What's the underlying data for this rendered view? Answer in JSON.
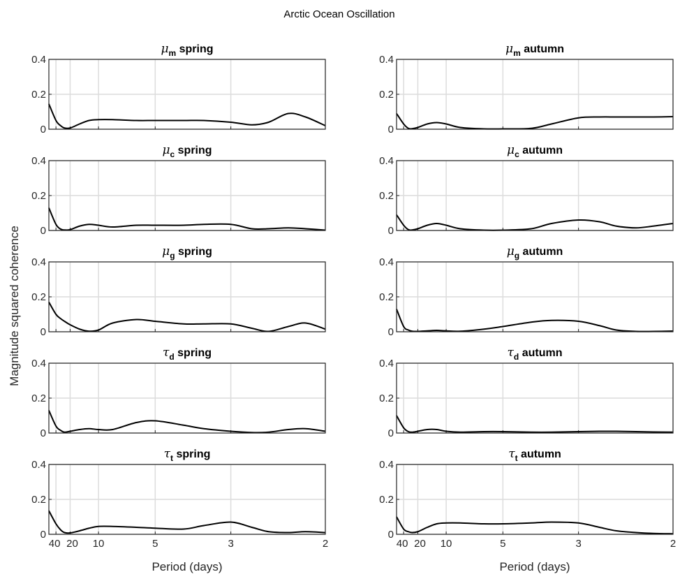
{
  "figure_title": "Arctic Ocean Oscillation",
  "ylabel": "Magnitude squared coherence",
  "xlabel": "Period (days)",
  "chart_data": [
    {
      "type": "line",
      "title_symbol": "μ",
      "title_sub": "m",
      "title_rest": " spring",
      "x_scale": "reciprocal (frequency)",
      "xticks": [
        40,
        20,
        10,
        5,
        3,
        2
      ],
      "xlim": [
        80,
        2
      ],
      "ylim": [
        0,
        0.4
      ],
      "yticks": [
        0,
        0.2,
        0.4
      ],
      "ytick_labels": [
        "0",
        "0.2",
        "0.4"
      ],
      "grid": true,
      "x": [
        80,
        40,
        30,
        25,
        20,
        15,
        12,
        10,
        8,
        6,
        5,
        4,
        3.5,
        3,
        2.7,
        2.5,
        2.3,
        2.15,
        2
      ],
      "y": [
        0.145,
        0.05,
        0.02,
        0.007,
        0.007,
        0.03,
        0.05,
        0.055,
        0.055,
        0.05,
        0.05,
        0.05,
        0.05,
        0.04,
        0.025,
        0.04,
        0.09,
        0.07,
        0.02
      ]
    },
    {
      "type": "line",
      "title_symbol": "μ",
      "title_sub": "m",
      "title_rest": " autumn",
      "x_scale": "reciprocal (frequency)",
      "xticks": [
        40,
        20,
        10,
        5,
        3,
        2
      ],
      "xlim": [
        80,
        2
      ],
      "ylim": [
        0,
        0.4
      ],
      "yticks": [
        0,
        0.2,
        0.4
      ],
      "ytick_labels": [
        "0",
        "0.2",
        "0.4"
      ],
      "grid": true,
      "x": [
        80,
        40,
        30,
        25,
        20,
        15,
        12,
        10,
        8,
        6,
        5,
        4,
        3.5,
        3,
        2.7,
        2.5,
        2.3,
        2.15,
        2
      ],
      "y": [
        0.09,
        0.03,
        0.005,
        0.003,
        0.01,
        0.03,
        0.038,
        0.03,
        0.01,
        0.002,
        0.002,
        0.005,
        0.03,
        0.065,
        0.07,
        0.07,
        0.07,
        0.07,
        0.072
      ]
    },
    {
      "type": "line",
      "title_symbol": "μ",
      "title_sub": "c",
      "title_rest": " spring",
      "x_scale": "reciprocal (frequency)",
      "xticks": [
        40,
        20,
        10,
        5,
        3,
        2
      ],
      "xlim": [
        80,
        2
      ],
      "ylim": [
        0,
        0.4
      ],
      "yticks": [
        0,
        0.2,
        0.4
      ],
      "ytick_labels": [
        "0",
        "0.2",
        "0.4"
      ],
      "grid": true,
      "x": [
        80,
        40,
        30,
        25,
        20,
        15,
        12,
        10,
        8,
        6,
        5,
        4,
        3.5,
        3,
        2.7,
        2.5,
        2.3,
        2.15,
        2
      ],
      "y": [
        0.13,
        0.035,
        0.008,
        0.003,
        0.005,
        0.025,
        0.035,
        0.03,
        0.02,
        0.03,
        0.03,
        0.03,
        0.035,
        0.035,
        0.01,
        0.01,
        0.015,
        0.01,
        0.002
      ]
    },
    {
      "type": "line",
      "title_symbol": "μ",
      "title_sub": "c",
      "title_rest": " autumn",
      "x_scale": "reciprocal (frequency)",
      "xticks": [
        40,
        20,
        10,
        5,
        3,
        2
      ],
      "xlim": [
        80,
        2
      ],
      "ylim": [
        0,
        0.4
      ],
      "yticks": [
        0,
        0.2,
        0.4
      ],
      "ytick_labels": [
        "0",
        "0.2",
        "0.4"
      ],
      "grid": true,
      "x": [
        80,
        40,
        30,
        25,
        20,
        15,
        12,
        10,
        8,
        6,
        5,
        4,
        3.5,
        3,
        2.7,
        2.5,
        2.3,
        2.15,
        2
      ],
      "y": [
        0.09,
        0.03,
        0.005,
        0.003,
        0.01,
        0.03,
        0.04,
        0.03,
        0.01,
        0.002,
        0.002,
        0.01,
        0.04,
        0.06,
        0.05,
        0.025,
        0.015,
        0.025,
        0.04
      ]
    },
    {
      "type": "line",
      "title_symbol": "μ",
      "title_sub": "g",
      "title_rest": " spring",
      "x_scale": "reciprocal (frequency)",
      "xticks": [
        40,
        20,
        10,
        5,
        3,
        2
      ],
      "xlim": [
        80,
        2
      ],
      "ylim": [
        0,
        0.4
      ],
      "yticks": [
        0,
        0.2,
        0.4
      ],
      "ytick_labels": [
        "0",
        "0.2",
        "0.4"
      ],
      "grid": true,
      "x": [
        80,
        40,
        30,
        25,
        20,
        15,
        12,
        10,
        8,
        6,
        5,
        4,
        3.5,
        3,
        2.7,
        2.5,
        2.3,
        2.15,
        2
      ],
      "y": [
        0.17,
        0.1,
        0.075,
        0.06,
        0.04,
        0.015,
        0.003,
        0.01,
        0.05,
        0.07,
        0.06,
        0.045,
        0.045,
        0.045,
        0.02,
        0.002,
        0.03,
        0.05,
        0.015
      ]
    },
    {
      "type": "line",
      "title_symbol": "μ",
      "title_sub": "g",
      "title_rest": " autumn",
      "x_scale": "reciprocal (frequency)",
      "xticks": [
        40,
        20,
        10,
        5,
        3,
        2
      ],
      "xlim": [
        80,
        2
      ],
      "ylim": [
        0,
        0.4
      ],
      "yticks": [
        0,
        0.2,
        0.4
      ],
      "ytick_labels": [
        "0",
        "0.2",
        "0.4"
      ],
      "grid": true,
      "x": [
        80,
        40,
        30,
        25,
        20,
        15,
        12,
        10,
        8,
        6,
        5,
        4,
        3.5,
        3,
        2.7,
        2.5,
        2.3,
        2.15,
        2
      ],
      "y": [
        0.13,
        0.03,
        0.01,
        0.003,
        0.002,
        0.005,
        0.008,
        0.005,
        0.003,
        0.015,
        0.03,
        0.055,
        0.065,
        0.06,
        0.035,
        0.01,
        0.002,
        0.002,
        0.004
      ]
    },
    {
      "type": "line",
      "title_symbol": "τ",
      "title_sub": "d",
      "title_rest": " spring",
      "x_scale": "reciprocal (frequency)",
      "xticks": [
        40,
        20,
        10,
        5,
        3,
        2
      ],
      "xlim": [
        80,
        2
      ],
      "ylim": [
        0,
        0.4
      ],
      "yticks": [
        0,
        0.2,
        0.4
      ],
      "ytick_labels": [
        "0",
        "0.2",
        "0.4"
      ],
      "grid": true,
      "x": [
        80,
        40,
        30,
        25,
        20,
        15,
        12,
        10,
        8,
        6,
        5,
        4,
        3.5,
        3,
        2.7,
        2.5,
        2.3,
        2.15,
        2
      ],
      "y": [
        0.13,
        0.04,
        0.015,
        0.005,
        0.01,
        0.02,
        0.025,
        0.02,
        0.02,
        0.06,
        0.07,
        0.045,
        0.025,
        0.01,
        0.003,
        0.005,
        0.02,
        0.025,
        0.01
      ]
    },
    {
      "type": "line",
      "title_symbol": "τ",
      "title_sub": "d",
      "title_rest": " autumn",
      "x_scale": "reciprocal (frequency)",
      "xticks": [
        40,
        20,
        10,
        5,
        3,
        2
      ],
      "xlim": [
        80,
        2
      ],
      "ylim": [
        0,
        0.4
      ],
      "yticks": [
        0,
        0.2,
        0.4
      ],
      "ytick_labels": [
        "0",
        "0.2",
        "0.4"
      ],
      "grid": true,
      "x": [
        80,
        40,
        30,
        25,
        20,
        15,
        12,
        10,
        8,
        6,
        5,
        4,
        3.5,
        3,
        2.7,
        2.5,
        2.3,
        2.15,
        2
      ],
      "y": [
        0.1,
        0.03,
        0.008,
        0.005,
        0.01,
        0.02,
        0.02,
        0.01,
        0.005,
        0.008,
        0.008,
        0.005,
        0.005,
        0.008,
        0.01,
        0.01,
        0.008,
        0.006,
        0.005
      ]
    },
    {
      "type": "line",
      "title_symbol": "τ",
      "title_sub": "t",
      "title_rest": " spring",
      "x_scale": "reciprocal (frequency)",
      "xticks": [
        40,
        20,
        10,
        5,
        3,
        2
      ],
      "xlim": [
        80,
        2
      ],
      "ylim": [
        0,
        0.4
      ],
      "yticks": [
        0,
        0.2,
        0.4
      ],
      "ytick_labels": [
        "0",
        "0.2",
        "0.4"
      ],
      "grid": true,
      "x": [
        80,
        40,
        30,
        25,
        20,
        15,
        12,
        10,
        8,
        6,
        5,
        4,
        3.5,
        3,
        2.7,
        2.5,
        2.3,
        2.15,
        2
      ],
      "y": [
        0.135,
        0.06,
        0.025,
        0.01,
        0.008,
        0.02,
        0.035,
        0.045,
        0.045,
        0.04,
        0.035,
        0.03,
        0.05,
        0.07,
        0.04,
        0.015,
        0.01,
        0.015,
        0.01
      ]
    },
    {
      "type": "line",
      "title_symbol": "τ",
      "title_sub": "t",
      "title_rest": " autumn",
      "x_scale": "reciprocal (frequency)",
      "xticks": [
        40,
        20,
        10,
        5,
        3,
        2
      ],
      "xlim": [
        80,
        2
      ],
      "ylim": [
        0,
        0.4
      ],
      "yticks": [
        0,
        0.2,
        0.4
      ],
      "ytick_labels": [
        "0",
        "0.2",
        "0.4"
      ],
      "grid": true,
      "x": [
        80,
        40,
        30,
        25,
        20,
        15,
        12,
        10,
        8,
        6,
        5,
        4,
        3.5,
        3,
        2.7,
        2.5,
        2.3,
        2.15,
        2
      ],
      "y": [
        0.1,
        0.03,
        0.015,
        0.01,
        0.015,
        0.04,
        0.06,
        0.065,
        0.065,
        0.06,
        0.06,
        0.065,
        0.07,
        0.065,
        0.04,
        0.02,
        0.01,
        0.005,
        0.003
      ]
    }
  ]
}
